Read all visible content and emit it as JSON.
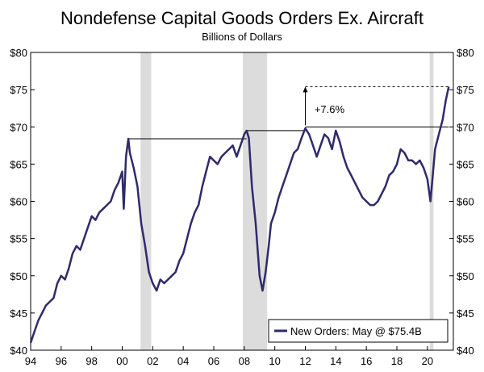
{
  "chart_data": {
    "type": "line",
    "title": "Nondefense Capital Goods Orders Ex. Aircraft",
    "subtitle": "Billions of Dollars",
    "xlabel": "",
    "ylabel": "",
    "xlim": [
      1994,
      2021.7
    ],
    "ylim": [
      40,
      80
    ],
    "x_ticks": [
      {
        "value": 1994,
        "label": "94"
      },
      {
        "value": 1996,
        "label": "96"
      },
      {
        "value": 1998,
        "label": "98"
      },
      {
        "value": 2000,
        "label": "00"
      },
      {
        "value": 2002,
        "label": "02"
      },
      {
        "value": 2004,
        "label": "04"
      },
      {
        "value": 2006,
        "label": "06"
      },
      {
        "value": 2008,
        "label": "08"
      },
      {
        "value": 2010,
        "label": "10"
      },
      {
        "value": 2012,
        "label": "12"
      },
      {
        "value": 2014,
        "label": "14"
      },
      {
        "value": 2016,
        "label": "16"
      },
      {
        "value": 2018,
        "label": "18"
      },
      {
        "value": 2020,
        "label": "20"
      }
    ],
    "y_ticks": [
      {
        "value": 40,
        "label": "$40"
      },
      {
        "value": 45,
        "label": "$45"
      },
      {
        "value": 50,
        "label": "$50"
      },
      {
        "value": 55,
        "label": "$55"
      },
      {
        "value": 60,
        "label": "$60"
      },
      {
        "value": 65,
        "label": "$65"
      },
      {
        "value": 70,
        "label": "$70"
      },
      {
        "value": 75,
        "label": "$75"
      },
      {
        "value": 80,
        "label": "$80"
      }
    ],
    "recessions": [
      {
        "start": 2001.2,
        "end": 2001.9
      },
      {
        "start": 2007.9,
        "end": 2009.5
      },
      {
        "start": 2020.15,
        "end": 2020.4
      }
    ],
    "series": [
      {
        "name": "New Orders: May @ $75.4B",
        "color": "#2e2a6b",
        "x": [
          1994.0,
          1994.25,
          1994.5,
          1994.75,
          1995.0,
          1995.25,
          1995.5,
          1995.75,
          1996.0,
          1996.25,
          1996.5,
          1996.75,
          1997.0,
          1997.25,
          1997.5,
          1997.75,
          1998.0,
          1998.25,
          1998.5,
          1998.75,
          1999.0,
          1999.25,
          1999.5,
          1999.75,
          2000.0,
          2000.1,
          2000.25,
          2000.4,
          2000.5,
          2000.75,
          2001.0,
          2001.25,
          2001.5,
          2001.75,
          2002.0,
          2002.25,
          2002.5,
          2002.75,
          2003.0,
          2003.25,
          2003.5,
          2003.75,
          2004.0,
          2004.25,
          2004.5,
          2004.75,
          2005.0,
          2005.25,
          2005.5,
          2005.75,
          2006.0,
          2006.25,
          2006.5,
          2006.75,
          2007.0,
          2007.25,
          2007.5,
          2007.75,
          2008.0,
          2008.15,
          2008.3,
          2008.5,
          2008.75,
          2009.0,
          2009.2,
          2009.4,
          2009.6,
          2009.75,
          2010.0,
          2010.25,
          2010.5,
          2010.75,
          2011.0,
          2011.25,
          2011.5,
          2011.75,
          2012.0,
          2012.25,
          2012.5,
          2012.75,
          2013.0,
          2013.25,
          2013.5,
          2013.75,
          2014.0,
          2014.25,
          2014.5,
          2014.75,
          2015.0,
          2015.25,
          2015.5,
          2015.75,
          2016.0,
          2016.25,
          2016.5,
          2016.75,
          2017.0,
          2017.25,
          2017.5,
          2017.75,
          2018.0,
          2018.25,
          2018.5,
          2018.75,
          2019.0,
          2019.25,
          2019.5,
          2019.75,
          2020.0,
          2020.2,
          2020.35,
          2020.5,
          2020.75,
          2021.0,
          2021.2,
          2021.4
        ],
        "values": [
          41.0,
          42.5,
          44.0,
          45.0,
          46.0,
          46.5,
          47.0,
          49.0,
          50.0,
          49.5,
          51.0,
          53.0,
          54.0,
          53.5,
          55.0,
          56.5,
          58.0,
          57.5,
          58.5,
          59.0,
          59.5,
          60.0,
          61.5,
          62.5,
          64.0,
          59.0,
          66.0,
          68.4,
          66.5,
          64.5,
          62.0,
          57.0,
          54.0,
          50.5,
          49.0,
          48.0,
          49.5,
          49.0,
          49.5,
          50.0,
          50.5,
          52.0,
          53.0,
          55.0,
          57.0,
          58.5,
          59.5,
          62.0,
          64.0,
          66.0,
          65.5,
          65.0,
          66.0,
          66.5,
          67.0,
          67.5,
          66.0,
          67.5,
          69.0,
          69.5,
          68.5,
          62.0,
          57.0,
          50.0,
          48.0,
          50.5,
          54.0,
          57.0,
          58.5,
          60.5,
          62.0,
          63.5,
          65.0,
          66.5,
          67.0,
          68.5,
          69.8,
          69.0,
          67.5,
          66.0,
          67.5,
          69.0,
          68.5,
          67.0,
          69.5,
          68.0,
          66.0,
          64.5,
          63.5,
          62.5,
          61.5,
          60.5,
          60.0,
          59.5,
          59.5,
          60.0,
          61.0,
          62.0,
          63.5,
          64.0,
          65.0,
          67.0,
          66.5,
          65.5,
          65.5,
          65.0,
          65.5,
          64.5,
          63.0,
          60.0,
          63.5,
          67.0,
          69.0,
          71.0,
          73.5,
          75.4
        ]
      }
    ],
    "reference_lines": [
      {
        "x_start": 2000.4,
        "x_end": 2008.15,
        "y": 68.4
      },
      {
        "x_start": 2008.15,
        "x_end": 2012.0,
        "y": 69.5
      },
      {
        "x_start": 2012.0,
        "x_end": 2021.4,
        "y": 70.0
      }
    ],
    "dashed_line": {
      "x_start": 2012.0,
      "x_end": 2021.4,
      "y": 75.4
    },
    "arrow": {
      "x": 2012.0,
      "y_from": 70.0,
      "y_to": 75.4
    },
    "annotation": {
      "text": "+7.6%",
      "x": 2012.6,
      "y": 72.4
    },
    "legend_position": "bottom-right"
  }
}
